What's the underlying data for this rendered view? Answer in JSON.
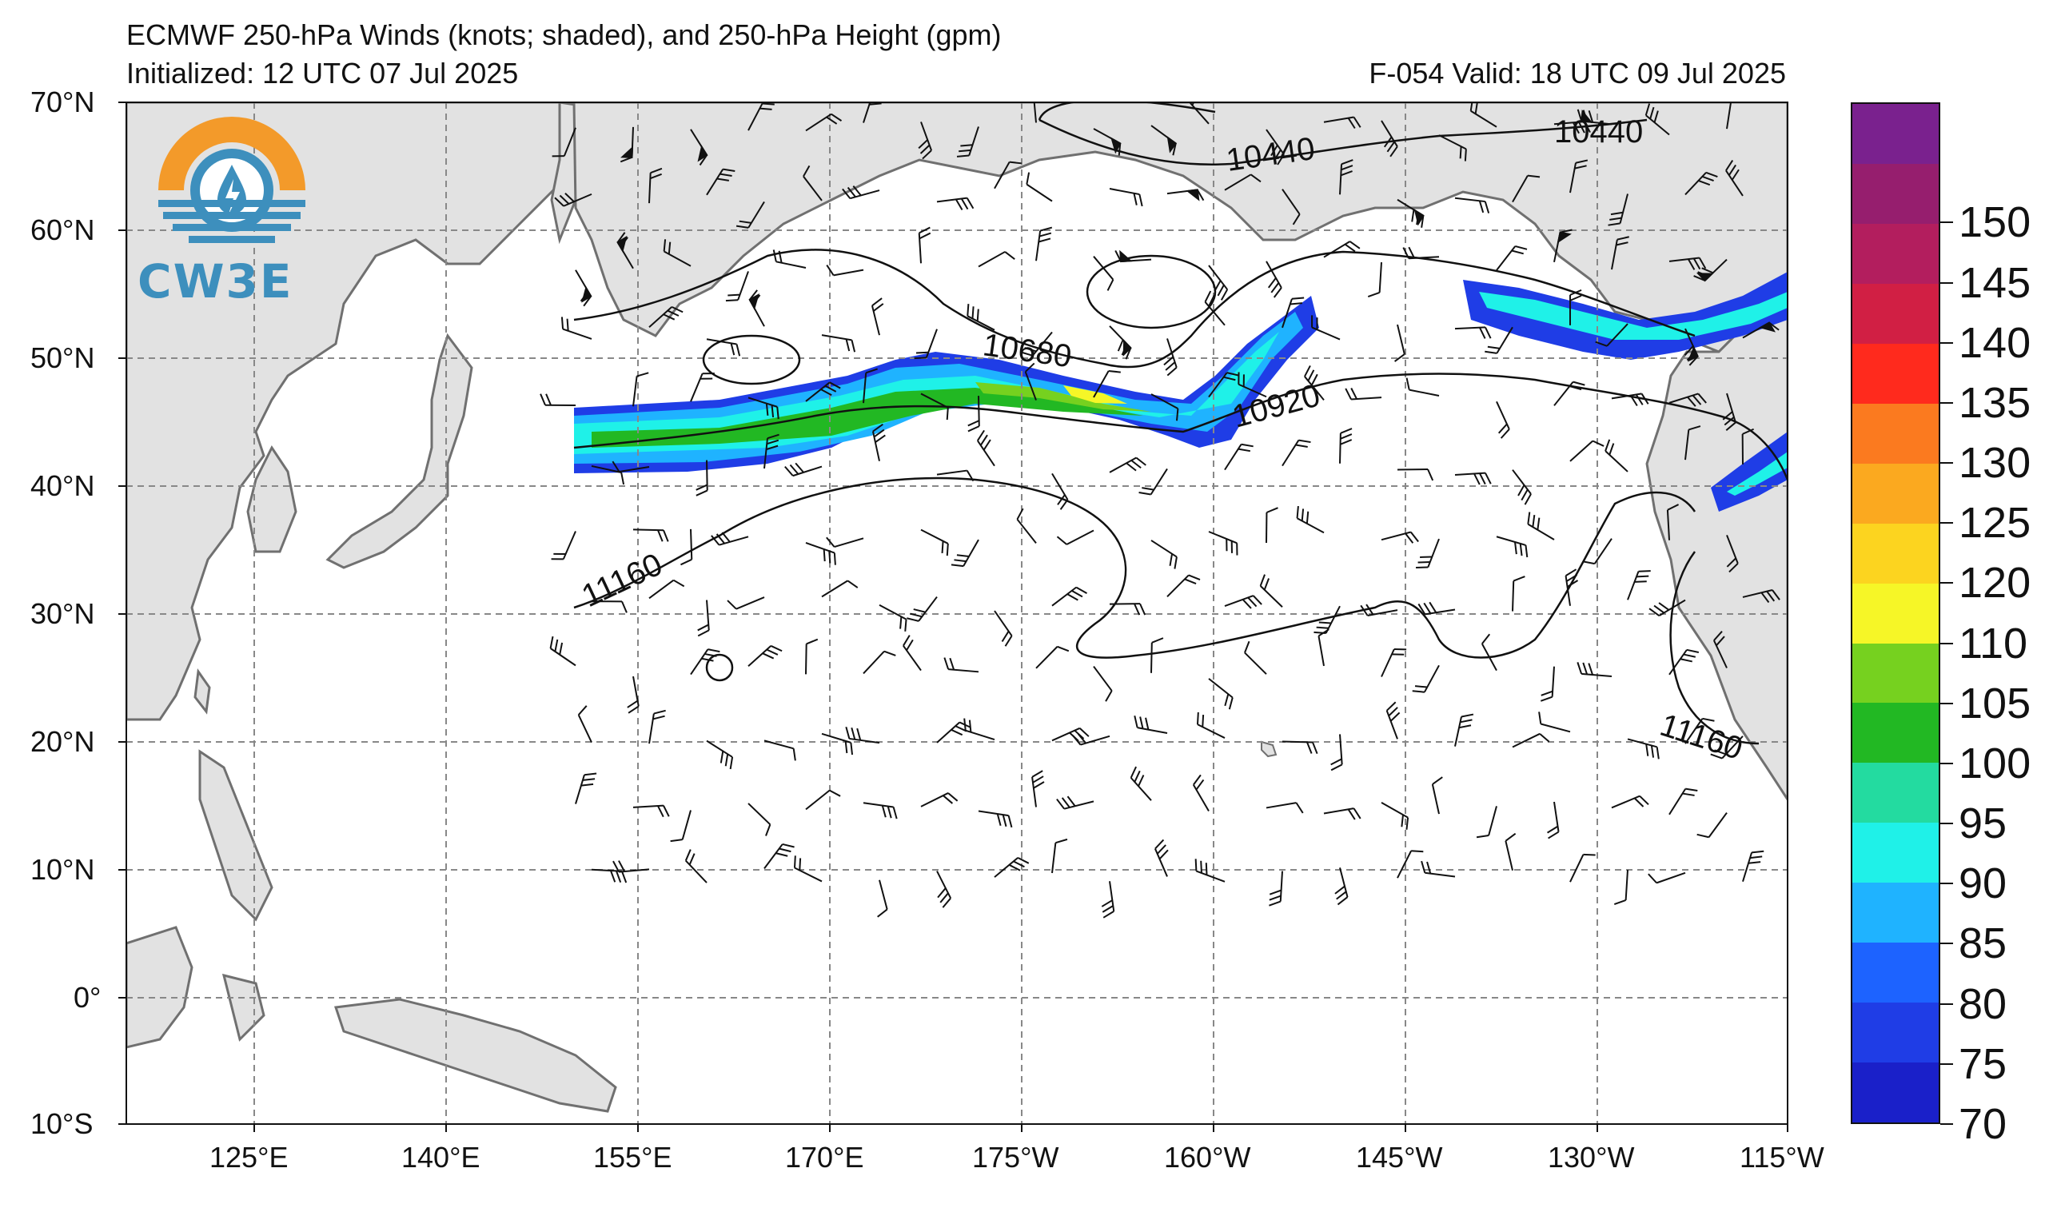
{
  "header": {
    "title": "ECMWF 250-hPa Winds (knots; shaded), and 250-hPa Height (gpm)",
    "initialized": "Initialized: 12 UTC 07 Jul 2025",
    "valid": "F-054  Valid: 18 UTC 09 Jul 2025"
  },
  "logo": {
    "text": "CW3E",
    "icon": "cw3e-logo-icon"
  },
  "map": {
    "lat_labels": [
      "70°N",
      "60°N",
      "50°N",
      "40°N",
      "30°N",
      "20°N",
      "10°N",
      "0°",
      "10°S"
    ],
    "lon_labels": [
      "125°E",
      "140°E",
      "155°E",
      "170°E",
      "175°W",
      "160°W",
      "145°W",
      "130°W",
      "115°W"
    ],
    "lon_range": [
      "117°E",
      "115°W"
    ],
    "lat_range": [
      "10°S",
      "70°N"
    ],
    "contour_labels": [
      "10440",
      "10440",
      "10680",
      "10920",
      "11160",
      "11160"
    ],
    "land_color": "#e2e2e2",
    "coast_color": "#707070",
    "grid": true
  },
  "colorbar": {
    "unit": "knots",
    "labels": [
      "70",
      "75",
      "80",
      "85",
      "90",
      "95",
      "100",
      "105",
      "110",
      "120",
      "125",
      "130",
      "135",
      "140",
      "145",
      "150"
    ],
    "colors": [
      "#1a20c9",
      "#1f3de6",
      "#1d63ff",
      "#1fb3ff",
      "#1ff1e8",
      "#23dba0",
      "#22b823",
      "#76d11f",
      "#f6f627",
      "#fcd41f",
      "#fba91f",
      "#fb7a1f",
      "#ff2a1d",
      "#d11f44",
      "#b31e5e",
      "#961e6e",
      "#7a218e"
    ]
  },
  "chart_data": {
    "type": "contour-map",
    "variable_shaded": "250-hPa wind speed (knots)",
    "variable_contoured": "250-hPa height (gpm)",
    "contour_levels_labeled": [
      10440,
      10680,
      10920,
      11160
    ],
    "shading_range": [
      70,
      155
    ]
  }
}
